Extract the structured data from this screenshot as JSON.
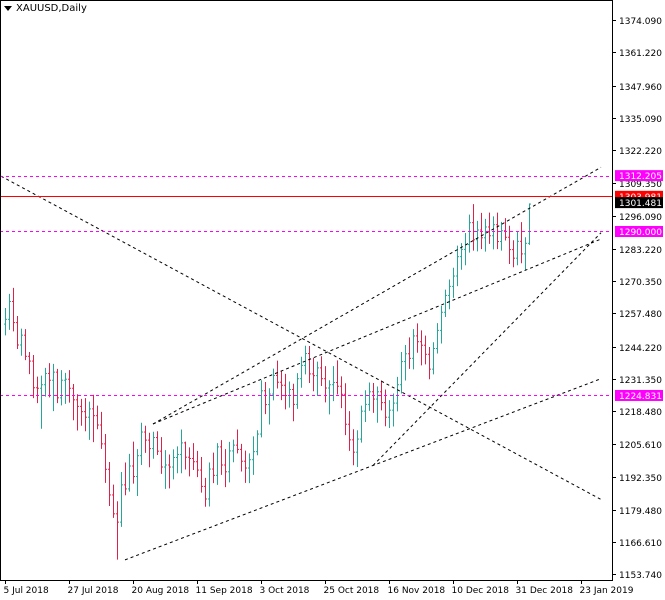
{
  "header": {
    "title": "XAUUSD,Daily"
  },
  "colors": {
    "bull": "#26a69a",
    "bear": "#e0204a",
    "hline_magenta": "#ff00ff",
    "hline_red": "#ff0000",
    "frame": "#000000",
    "trend": "#000000"
  },
  "chart_data": {
    "type": "candlestick",
    "symbol": "XAUUSD",
    "timeframe": "Daily",
    "title": "XAUUSD,Daily",
    "ylim": [
      1151.5,
      1382.0
    ],
    "y_ticks": [
      "1374.090",
      "1361.220",
      "1347.960",
      "1335.090",
      "1322.220",
      "1309.350",
      "1296.090",
      "1283.220",
      "1270.350",
      "1257.480",
      "1244.220",
      "1231.350",
      "1218.480",
      "1205.610",
      "1192.350",
      "1179.480",
      "1166.610",
      "1153.740"
    ],
    "x_ticks": [
      {
        "label": "5 Jul 2018",
        "bar": 0
      },
      {
        "label": "27 Jul 2018",
        "bar": 16
      },
      {
        "label": "20 Aug 2018",
        "bar": 32
      },
      {
        "label": "11 Sep 2018",
        "bar": 48
      },
      {
        "label": "3 Oct 2018",
        "bar": 64
      },
      {
        "label": "25 Oct 2018",
        "bar": 80
      },
      {
        "label": "16 Nov 2018",
        "bar": 96
      },
      {
        "label": "10 Dec 2018",
        "bar": 112
      },
      {
        "label": "31 Dec 2018",
        "bar": 128
      },
      {
        "label": "23 Jan 2019",
        "bar": 144
      }
    ],
    "horizontal_lines": [
      {
        "price": 1312.205,
        "label": "1312.205",
        "color": "#ff00ff",
        "style": "dashed"
      },
      {
        "price": 1303.981,
        "label": "1303.981",
        "color": "#ff0000",
        "style": "solid"
      },
      {
        "price": 1290.0,
        "label": "1290.000",
        "color": "#ff00ff",
        "style": "dashed"
      },
      {
        "price": 1224.831,
        "label": "1224.831",
        "color": "#ff00ff",
        "style": "dashed"
      }
    ],
    "current_price": {
      "price": 1301.481,
      "label": "1301.481"
    },
    "trendlines": [
      {
        "from": [
          -1,
          1312.0
        ],
        "to": [
          149,
          1183.5
        ]
      },
      {
        "from": [
          30,
          1159.5
        ],
        "to": [
          149,
          1231.5
        ]
      },
      {
        "from": [
          37,
          1213.5
        ],
        "to": [
          149,
          1315.5
        ]
      },
      {
        "from": [
          92,
          1197.0
        ],
        "to": [
          149,
          1289.5
        ]
      },
      {
        "from": [
          37,
          1213.5
        ],
        "to": [
          149,
          1287.0
        ]
      }
    ],
    "bars": [
      [
        1253.2,
        1259.6,
        1248.7,
        1255.1
      ],
      [
        1255.1,
        1265.2,
        1250.9,
        1262.2
      ],
      [
        1262.2,
        1267.6,
        1250.3,
        1253.8
      ],
      [
        1253.8,
        1256.4,
        1243.3,
        1244.9
      ],
      [
        1244.9,
        1251.4,
        1240.6,
        1248.8
      ],
      [
        1248.8,
        1251.2,
        1238.9,
        1240.4
      ],
      [
        1240.4,
        1242.1,
        1233.3,
        1238.5
      ],
      [
        1238.5,
        1240.9,
        1223.8,
        1227.9
      ],
      [
        1227.9,
        1232.3,
        1221.8,
        1227.7
      ],
      [
        1227.7,
        1232.7,
        1211.6,
        1229.1
      ],
      [
        1229.1,
        1235.8,
        1224.4,
        1233.6
      ],
      [
        1233.6,
        1237.7,
        1224.1,
        1230.9
      ],
      [
        1230.9,
        1237.4,
        1218.6,
        1234.1
      ],
      [
        1234.1,
        1235.4,
        1221.8,
        1223.9
      ],
      [
        1223.9,
        1234.9,
        1220.9,
        1230.9
      ],
      [
        1230.9,
        1233.8,
        1221.5,
        1231.3
      ],
      [
        1231.3,
        1234.9,
        1222.0,
        1227.7
      ],
      [
        1227.7,
        1229.4,
        1215.0,
        1223.1
      ],
      [
        1223.1,
        1225.3,
        1210.9,
        1220.5
      ],
      [
        1220.5,
        1223.5,
        1212.8,
        1218.4
      ],
      [
        1218.4,
        1223.8,
        1210.6,
        1216.2
      ],
      [
        1216.2,
        1222.4,
        1207.2,
        1219.5
      ],
      [
        1219.5,
        1225.1,
        1206.3,
        1216.8
      ],
      [
        1216.8,
        1220.8,
        1211.4,
        1213.1
      ],
      [
        1213.1,
        1218.3,
        1203.6,
        1205.6
      ],
      [
        1205.6,
        1209.5,
        1190.1,
        1195.5
      ],
      [
        1195.5,
        1198.4,
        1180.9,
        1185.3
      ],
      [
        1185.3,
        1189.4,
        1176.2,
        1177.8
      ],
      [
        1177.8,
        1182.8,
        1159.6,
        1174.5
      ],
      [
        1174.5,
        1194.4,
        1172.6,
        1189.3
      ],
      [
        1189.3,
        1198.2,
        1185.2,
        1187.7
      ],
      [
        1187.7,
        1201.6,
        1186.6,
        1196.8
      ],
      [
        1196.8,
        1206.5,
        1189.8,
        1192.6
      ],
      [
        1192.6,
        1203.5,
        1184.9,
        1200.9
      ],
      [
        1200.9,
        1214.0,
        1197.2,
        1210.3
      ],
      [
        1210.3,
        1212.8,
        1202.0,
        1207.1
      ],
      [
        1207.1,
        1210.0,
        1196.3,
        1203.7
      ],
      [
        1203.7,
        1210.4,
        1199.7,
        1208.1
      ],
      [
        1208.1,
        1210.6,
        1201.2,
        1202.7
      ],
      [
        1202.7,
        1208.3,
        1193.7,
        1196.4
      ],
      [
        1196.4,
        1203.1,
        1187.7,
        1197.2
      ],
      [
        1197.2,
        1201.4,
        1187.9,
        1196.4
      ],
      [
        1196.4,
        1203.4,
        1191.5,
        1200.2
      ],
      [
        1200.2,
        1204.6,
        1193.9,
        1201.4
      ],
      [
        1201.4,
        1211.3,
        1193.9,
        1206.0
      ],
      [
        1206.0,
        1206.5,
        1195.4,
        1200.3
      ],
      [
        1200.3,
        1204.2,
        1192.7,
        1199.8
      ],
      [
        1199.8,
        1205.9,
        1195.2,
        1198.5
      ],
      [
        1198.5,
        1202.8,
        1192.4,
        1195.2
      ],
      [
        1195.2,
        1200.4,
        1186.2,
        1188.7
      ],
      [
        1188.7,
        1192.1,
        1180.6,
        1183.7
      ],
      [
        1183.7,
        1198.2,
        1180.7,
        1195.6
      ],
      [
        1195.6,
        1202.1,
        1190.0,
        1193.1
      ],
      [
        1193.1,
        1205.9,
        1189.3,
        1204.4
      ],
      [
        1204.4,
        1207.1,
        1193.3,
        1197.2
      ],
      [
        1197.2,
        1203.5,
        1188.4,
        1194.5
      ],
      [
        1194.5,
        1206.4,
        1190.3,
        1202.8
      ],
      [
        1202.8,
        1207.3,
        1198.3,
        1205.1
      ],
      [
        1205.1,
        1211.3,
        1201.8,
        1203.4
      ],
      [
        1203.4,
        1205.6,
        1194.6,
        1198.7
      ],
      [
        1198.7,
        1202.9,
        1190.1,
        1196.0
      ],
      [
        1196.0,
        1201.8,
        1190.0,
        1199.3
      ],
      [
        1199.3,
        1208.6,
        1193.3,
        1202.5
      ],
      [
        1202.5,
        1211.0,
        1201.1,
        1209.5
      ],
      [
        1209.5,
        1230.9,
        1208.2,
        1226.7
      ],
      [
        1226.7,
        1230.2,
        1217.4,
        1221.2
      ],
      [
        1221.2,
        1227.7,
        1213.3,
        1225.4
      ],
      [
        1225.4,
        1235.5,
        1222.9,
        1232.8
      ],
      [
        1232.8,
        1238.7,
        1227.6,
        1230.1
      ],
      [
        1230.1,
        1234.5,
        1223.0,
        1228.9
      ],
      [
        1228.9,
        1233.4,
        1219.3,
        1224.8
      ],
      [
        1224.8,
        1230.4,
        1220.0,
        1227.2
      ],
      [
        1227.2,
        1229.5,
        1214.6,
        1221.3
      ],
      [
        1221.3,
        1233.7,
        1219.5,
        1231.5
      ],
      [
        1231.5,
        1240.2,
        1227.9,
        1236.8
      ],
      [
        1236.8,
        1244.6,
        1233.2,
        1241.5
      ],
      [
        1241.5,
        1244.5,
        1229.8,
        1233.4
      ],
      [
        1233.4,
        1239.8,
        1226.5,
        1232.7
      ],
      [
        1232.7,
        1238.3,
        1224.6,
        1235.8
      ],
      [
        1235.8,
        1240.4,
        1228.6,
        1231.5
      ],
      [
        1231.5,
        1236.5,
        1222.1,
        1227.8
      ],
      [
        1227.8,
        1230.9,
        1217.3,
        1229.1
      ],
      [
        1229.1,
        1236.5,
        1222.6,
        1230.0
      ],
      [
        1230.0,
        1238.8,
        1225.2,
        1228.5
      ],
      [
        1228.5,
        1232.4,
        1219.8,
        1225.3
      ],
      [
        1225.3,
        1229.7,
        1209.1,
        1213.4
      ],
      [
        1213.4,
        1218.6,
        1202.8,
        1207.2
      ],
      [
        1207.2,
        1211.4,
        1197.1,
        1202.3
      ],
      [
        1202.3,
        1211.0,
        1196.4,
        1207.5
      ],
      [
        1207.5,
        1220.8,
        1206.1,
        1218.6
      ],
      [
        1218.6,
        1226.9,
        1214.3,
        1221.3
      ],
      [
        1221.3,
        1230.0,
        1218.7,
        1226.3
      ],
      [
        1226.3,
        1229.8,
        1217.9,
        1223.4
      ],
      [
        1223.4,
        1228.4,
        1214.0,
        1226.3
      ],
      [
        1226.3,
        1230.8,
        1218.9,
        1222.0
      ],
      [
        1222.0,
        1227.2,
        1212.6,
        1216.2
      ],
      [
        1216.2,
        1223.0,
        1211.9,
        1219.0
      ],
      [
        1219.0,
        1225.6,
        1212.5,
        1221.8
      ],
      [
        1221.8,
        1232.2,
        1218.5,
        1229.1
      ],
      [
        1229.1,
        1242.1,
        1225.6,
        1238.3
      ],
      [
        1238.3,
        1244.9,
        1230.8,
        1241.4
      ],
      [
        1241.4,
        1247.9,
        1235.4,
        1239.6
      ],
      [
        1239.6,
        1251.2,
        1235.2,
        1248.5
      ],
      [
        1248.5,
        1253.5,
        1241.8,
        1246.2
      ],
      [
        1246.2,
        1250.7,
        1236.8,
        1244.8
      ],
      [
        1244.8,
        1248.6,
        1237.2,
        1241.2
      ],
      [
        1241.2,
        1244.1,
        1231.3,
        1235.3
      ],
      [
        1235.3,
        1246.0,
        1233.2,
        1243.5
      ],
      [
        1243.5,
        1253.6,
        1241.5,
        1250.7
      ],
      [
        1250.7,
        1260.5,
        1245.5,
        1257.9
      ],
      [
        1257.9,
        1266.9,
        1256.0,
        1264.6
      ],
      [
        1264.6,
        1270.9,
        1259.1,
        1268.2
      ],
      [
        1268.2,
        1275.6,
        1263.6,
        1272.3
      ],
      [
        1272.3,
        1284.4,
        1268.3,
        1280.0
      ],
      [
        1280.0,
        1285.4,
        1274.8,
        1282.9
      ],
      [
        1282.9,
        1289.4,
        1276.6,
        1284.8
      ],
      [
        1284.8,
        1296.7,
        1281.6,
        1293.5
      ],
      [
        1293.5,
        1300.9,
        1282.4,
        1286.7
      ],
      [
        1286.7,
        1294.2,
        1282.1,
        1290.6
      ],
      [
        1290.6,
        1297.4,
        1283.0,
        1287.5
      ],
      [
        1287.5,
        1295.0,
        1282.0,
        1291.8
      ],
      [
        1291.8,
        1297.5,
        1285.1,
        1288.3
      ],
      [
        1288.3,
        1296.0,
        1282.9,
        1292.7
      ],
      [
        1292.7,
        1297.5,
        1283.0,
        1286.0
      ],
      [
        1286.0,
        1293.8,
        1282.4,
        1290.3
      ],
      [
        1290.3,
        1295.3,
        1286.4,
        1287.7
      ],
      [
        1287.7,
        1292.3,
        1277.1,
        1282.8
      ],
      [
        1282.8,
        1286.5,
        1275.8,
        1279.4
      ],
      [
        1279.4,
        1290.1,
        1276.6,
        1286.1
      ],
      [
        1286.1,
        1293.7,
        1277.4,
        1281.1
      ],
      [
        1281.1,
        1287.7,
        1274.5,
        1285.3
      ],
      [
        1285.3,
        1301.2,
        1284.7,
        1300.9
      ]
    ]
  }
}
